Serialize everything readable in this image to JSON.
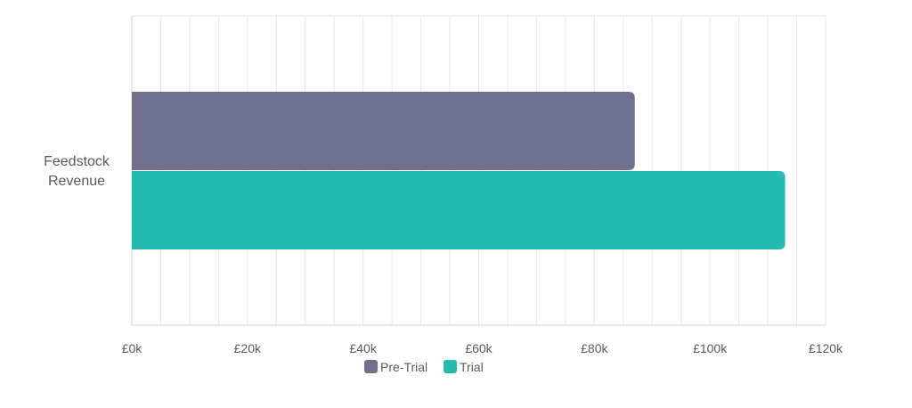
{
  "chart_data": {
    "type": "bar",
    "orientation": "horizontal",
    "categories": [
      "Feedstock Revenue"
    ],
    "category_label_lines": [
      "Feedstock",
      "Revenue"
    ],
    "series": [
      {
        "name": "Pre-Trial",
        "values": [
          87000
        ],
        "color": "#6f7090"
      },
      {
        "name": "Trial",
        "values": [
          113000
        ],
        "color": "#22bdb0"
      }
    ],
    "x_ticks": [
      {
        "value": 0,
        "label": "£0k"
      },
      {
        "value": 20000,
        "label": "£20k"
      },
      {
        "value": 40000,
        "label": "£40k"
      },
      {
        "value": 60000,
        "label": "£60k"
      },
      {
        "value": 80000,
        "label": "£80k"
      },
      {
        "value": 100000,
        "label": "£100k"
      },
      {
        "value": 120000,
        "label": "£120k"
      }
    ],
    "xlim": [
      0,
      120000
    ],
    "title": "",
    "xlabel": "",
    "ylabel": "",
    "grid": true,
    "legend_position": "bottom"
  }
}
